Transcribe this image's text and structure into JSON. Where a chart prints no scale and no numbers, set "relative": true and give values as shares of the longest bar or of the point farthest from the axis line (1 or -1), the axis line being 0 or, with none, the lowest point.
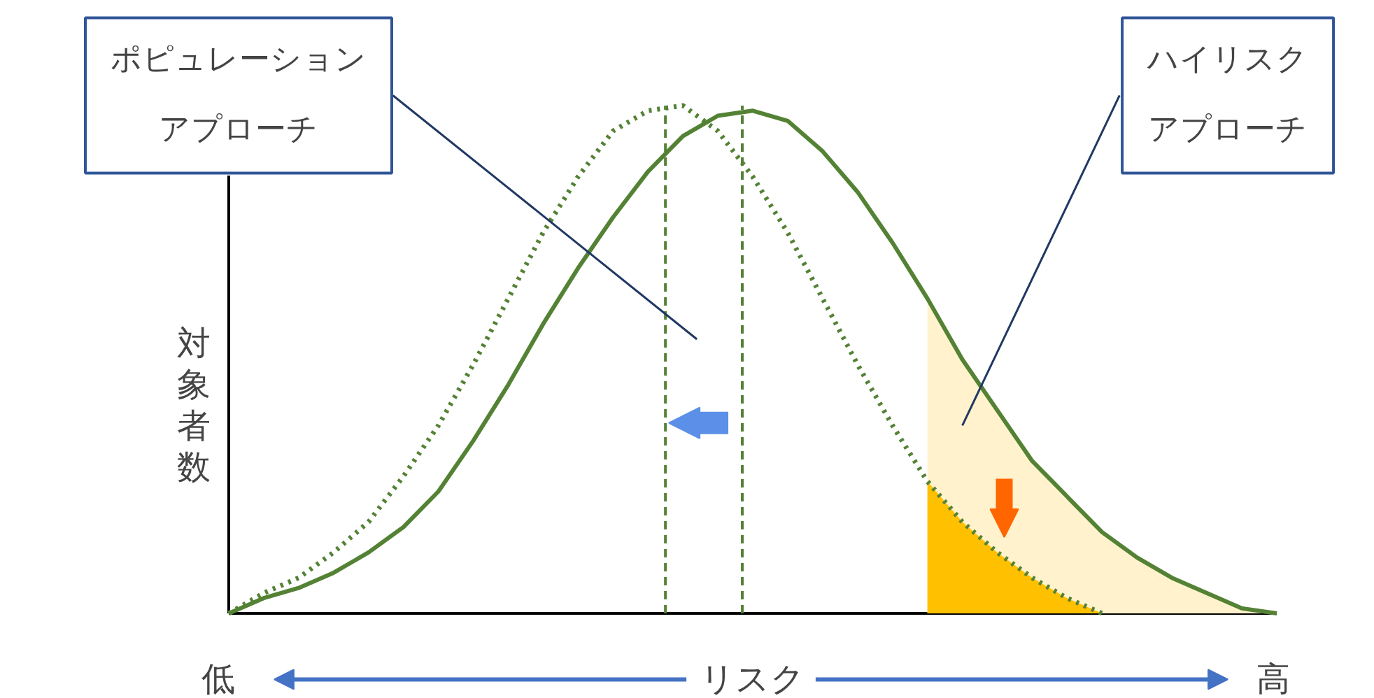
{
  "chart_data": {
    "type": "line",
    "relative": true,
    "ylabel": "対象者数",
    "xlabel": "リスク",
    "categories": [
      null,
      null,
      null,
      null,
      null,
      null,
      null,
      null,
      null,
      null,
      null,
      null,
      null,
      null,
      null,
      null,
      null,
      null,
      null,
      null,
      null,
      null,
      null,
      null,
      null,
      null,
      null,
      null,
      null,
      null,
      null
    ],
    "annotations": [
      "ポピュレーションアプローチ",
      "ハイリスクアプローチ",
      "低",
      "高"
    ],
    "series": [
      {
        "type": "area",
        "color": "#fff2cc",
        "values": [
          null,
          null,
          null,
          null,
          null,
          null,
          null,
          null,
          null,
          null,
          null,
          null,
          null,
          null,
          null,
          null,
          null,
          null,
          null,
          null,
          0.62,
          0.5,
          0.4,
          0.3,
          0.23,
          0.16,
          0.11,
          0.07,
          0.04,
          0.01,
          0
        ]
      },
      {
        "type": "area",
        "color": "#ffc000",
        "values": [
          null,
          null,
          null,
          null,
          null,
          null,
          null,
          null,
          null,
          null,
          null,
          null,
          null,
          null,
          null,
          null,
          null,
          null,
          null,
          null,
          0.26,
          0.18,
          0.12,
          0.07,
          0.03,
          0,
          null,
          null,
          null,
          null,
          null
        ]
      },
      {
        "color": "#548235",
        "line_style": "solid",
        "values": [
          0,
          0.03,
          0.05,
          0.08,
          0.12,
          0.17,
          0.24,
          0.34,
          0.45,
          0.57,
          0.68,
          0.78,
          0.87,
          0.94,
          0.98,
          0.99,
          0.97,
          0.91,
          0.83,
          0.73,
          0.62,
          0.5,
          0.4,
          0.3,
          0.23,
          0.16,
          0.11,
          0.07,
          0.04,
          0.01,
          0
        ]
      },
      {
        "color": "#548235",
        "line_style": "dotted",
        "values": [
          0,
          0.04,
          0.07,
          0.12,
          0.18,
          0.27,
          0.37,
          0.49,
          0.62,
          0.75,
          0.86,
          0.95,
          0.99,
          1,
          0.95,
          0.86,
          0.75,
          0.62,
          0.49,
          0.37,
          0.26,
          0.18,
          0.12,
          0.07,
          0.03,
          0,
          null,
          null,
          null,
          null,
          null
        ]
      }
    ]
  }
}
